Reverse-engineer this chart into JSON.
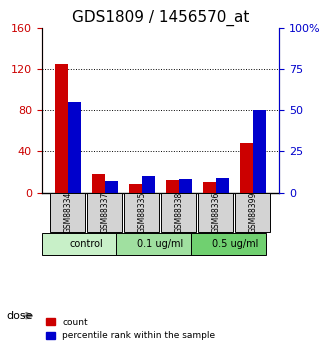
{
  "title": "GDS1809 / 1456570_at",
  "samples": [
    "GSM88334",
    "GSM88337",
    "GSM88335",
    "GSM88338",
    "GSM88336",
    "GSM88399"
  ],
  "red_values": [
    125,
    18,
    8,
    12,
    10,
    48
  ],
  "blue_values": [
    55,
    7,
    10,
    8,
    9,
    50
  ],
  "ylim_left": [
    0,
    160
  ],
  "ylim_right": [
    0,
    100
  ],
  "yticks_left": [
    0,
    40,
    80,
    120,
    160
  ],
  "yticks_right": [
    0,
    25,
    50,
    75,
    100
  ],
  "ytick_labels_right": [
    "0",
    "25",
    "50",
    "75",
    "100%"
  ],
  "groups": [
    {
      "label": "control",
      "start": 0,
      "end": 2,
      "color": "#d0f0c0"
    },
    {
      "label": "0.1 ug/ml",
      "start": 2,
      "end": 4,
      "color": "#90ee90"
    },
    {
      "label": "0.5 ug/ml",
      "start": 4,
      "end": 6,
      "color": "#50c878"
    }
  ],
  "dose_label": "dose",
  "legend_red": "count",
  "legend_blue": "percentile rank within the sample",
  "bar_color_red": "#cc0000",
  "bar_color_blue": "#0000cc",
  "bar_width": 0.35,
  "sample_bg_color": "#d3d3d3",
  "group_colors": [
    "#c8f0c8",
    "#a0e0a0",
    "#70d070"
  ],
  "title_fontsize": 11,
  "axis_left_color": "#cc0000",
  "axis_right_color": "#0000cc"
}
